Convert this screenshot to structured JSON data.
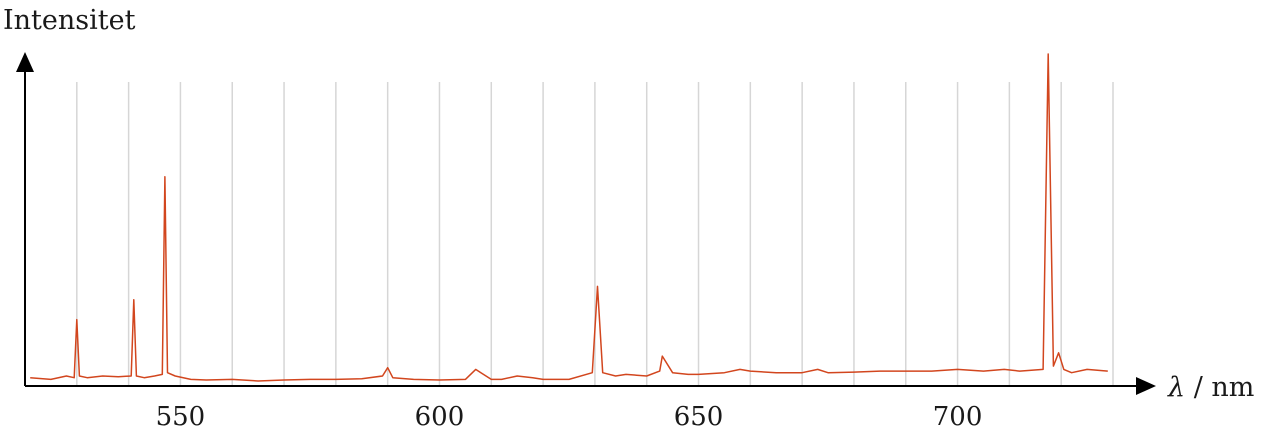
{
  "chart_data": {
    "type": "line",
    "title": "",
    "ylabel": "Intensitet",
    "xlabel_symbol": "λ",
    "xlabel_unit": " / nm",
    "xlim": [
      520,
      730
    ],
    "ylim": [
      0,
      1
    ],
    "x_ticks": [
      550,
      600,
      650,
      700
    ],
    "grid": {
      "vertical": true,
      "horizontal": false,
      "spacing": 10
    },
    "colors": {
      "series": "#d2461e",
      "grid": "#d6d6d6",
      "axis": "#000000"
    },
    "series": [
      {
        "x": [
          521,
          525,
          528,
          529.5,
          530,
          530.5,
          532,
          535,
          538,
          540.5,
          541,
          541.5,
          543,
          545,
          546.5,
          547,
          547.5,
          549,
          552,
          555,
          560,
          565,
          570,
          575,
          580,
          585,
          589,
          590,
          591,
          595,
          600,
          605,
          607,
          608,
          610,
          612,
          615,
          618,
          620,
          625,
          629.5,
          630.5,
          631.5,
          634,
          636,
          640,
          642.5,
          643,
          645,
          648,
          650,
          655,
          658,
          660,
          665,
          670,
          673,
          675,
          680,
          685,
          690,
          695,
          700,
          705,
          709,
          712,
          716.5,
          717.5,
          718.5,
          719.5,
          720.5,
          722,
          725,
          729
        ],
        "y": [
          0.025,
          0.02,
          0.03,
          0.025,
          0.2,
          0.03,
          0.025,
          0.03,
          0.028,
          0.03,
          0.26,
          0.03,
          0.025,
          0.03,
          0.035,
          0.63,
          0.04,
          0.03,
          0.02,
          0.018,
          0.02,
          0.015,
          0.018,
          0.02,
          0.02,
          0.022,
          0.03,
          0.055,
          0.025,
          0.02,
          0.018,
          0.02,
          0.05,
          0.04,
          0.02,
          0.02,
          0.03,
          0.025,
          0.02,
          0.02,
          0.04,
          0.3,
          0.04,
          0.03,
          0.035,
          0.03,
          0.045,
          0.09,
          0.04,
          0.035,
          0.035,
          0.04,
          0.05,
          0.045,
          0.04,
          0.04,
          0.05,
          0.04,
          0.042,
          0.045,
          0.045,
          0.045,
          0.05,
          0.045,
          0.05,
          0.045,
          0.05,
          1.0,
          0.06,
          0.1,
          0.05,
          0.04,
          0.05,
          0.045
        ]
      }
    ]
  }
}
